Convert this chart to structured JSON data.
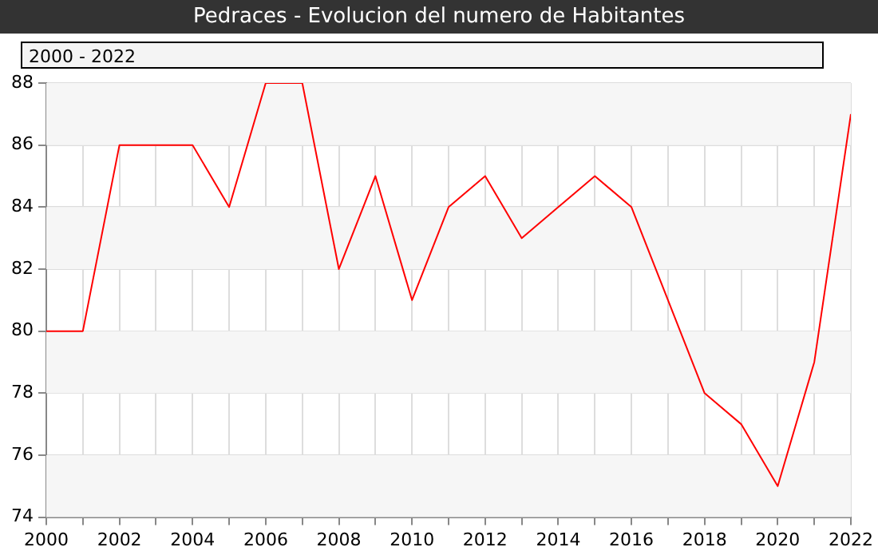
{
  "chart_data": {
    "type": "line",
    "title": "Pedraces - Evolucion del numero de Habitantes",
    "subtitle": "2000 - 2022",
    "x": [
      2000,
      2001,
      2002,
      2003,
      2004,
      2005,
      2006,
      2007,
      2008,
      2009,
      2010,
      2011,
      2012,
      2013,
      2014,
      2015,
      2016,
      2017,
      2018,
      2019,
      2020,
      2021,
      2022
    ],
    "series": [
      {
        "color": "#ff0000",
        "values": [
          80,
          80,
          86,
          86,
          86,
          84,
          88,
          88,
          82,
          85,
          81,
          84,
          85,
          83,
          84,
          85,
          84,
          81,
          78,
          77,
          75,
          79,
          87
        ]
      }
    ],
    "xlim": [
      2000,
      2022
    ],
    "xticks": [
      2000,
      {
        "value": 2001,
        "label": null
      },
      2002,
      {
        "value": 2003,
        "label": null
      },
      2004,
      {
        "value": 2005,
        "label": null
      },
      2006,
      {
        "value": 2007,
        "label": null
      },
      2008,
      {
        "value": 2009,
        "label": null
      },
      2010,
      {
        "value": 2011,
        "label": null
      },
      2012,
      {
        "value": 2013,
        "label": null
      },
      2014,
      {
        "value": 2015,
        "label": null
      },
      2016,
      {
        "value": 2017,
        "label": null
      },
      2018,
      {
        "value": 2019,
        "label": null
      },
      2020,
      {
        "value": 2021,
        "label": null
      },
      2022
    ],
    "ylim": [
      74,
      88
    ],
    "yticks": [
      74,
      76,
      78,
      80,
      82,
      84,
      86,
      88
    ],
    "grid": true,
    "marker": "none",
    "line_style": "solid"
  }
}
